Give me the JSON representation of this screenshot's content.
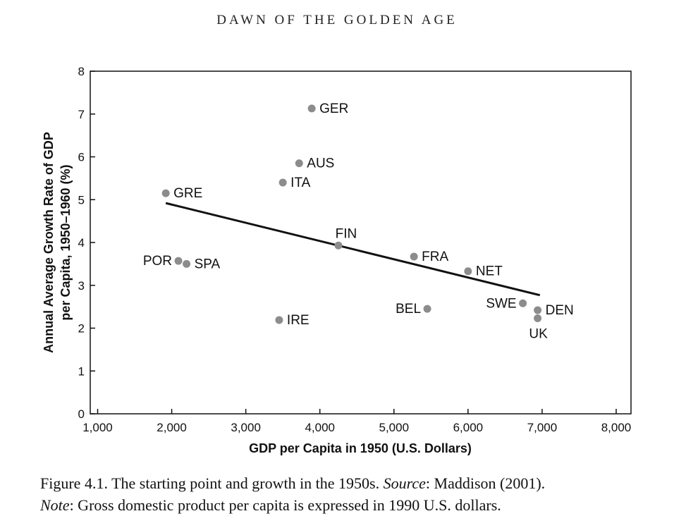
{
  "running_head": "DAWN OF THE GOLDEN AGE",
  "caption": {
    "figure_label": "Figure 4.1.",
    "text": "The starting point and growth in the 1950s.",
    "source_label": "Source",
    "source_text": ": Maddison (2001).",
    "note_label": "Note",
    "note_text": ": Gross domestic product per capita is expressed in 1990 U.S. dollars."
  },
  "chart_data": {
    "type": "scatter",
    "xlabel": "GDP per Capita in 1950 (U.S. Dollars)",
    "ylabel_lines": [
      "Annual Average Growth Rate of GDP",
      "per Capita, 1950–1960 (%)"
    ],
    "xlim": [
      900,
      8200
    ],
    "ylim": [
      0,
      8
    ],
    "x_ticks": [
      1000,
      2000,
      3000,
      4000,
      5000,
      6000,
      7000,
      8000
    ],
    "x_tick_labels": [
      "1,000",
      "2,000",
      "3,000",
      "4,000",
      "5,000",
      "6,000",
      "7,000",
      "8,000"
    ],
    "y_ticks": [
      0,
      1,
      2,
      3,
      4,
      5,
      6,
      7,
      8
    ],
    "y_tick_labels": [
      "0",
      "1",
      "2",
      "3",
      "4",
      "5",
      "6",
      "7",
      "8"
    ],
    "points": [
      {
        "label": "GER",
        "x": 3890,
        "y": 7.13,
        "label_pos": "right"
      },
      {
        "label": "AUS",
        "x": 3720,
        "y": 5.85,
        "label_pos": "right"
      },
      {
        "label": "ITA",
        "x": 3500,
        "y": 5.4,
        "label_pos": "right"
      },
      {
        "label": "GRE",
        "x": 1920,
        "y": 5.15,
        "label_pos": "right"
      },
      {
        "label": "FIN",
        "x": 4250,
        "y": 3.93,
        "label_pos": "above"
      },
      {
        "label": "FRA",
        "x": 5270,
        "y": 3.67,
        "label_pos": "right"
      },
      {
        "label": "NET",
        "x": 6000,
        "y": 3.33,
        "label_pos": "right"
      },
      {
        "label": "POR",
        "x": 2090,
        "y": 3.57,
        "label_pos": "left"
      },
      {
        "label": "SPA",
        "x": 2200,
        "y": 3.5,
        "label_pos": "right"
      },
      {
        "label": "BEL",
        "x": 5450,
        "y": 2.45,
        "label_pos": "left"
      },
      {
        "label": "SWE",
        "x": 6740,
        "y": 2.58,
        "label_pos": "left"
      },
      {
        "label": "DEN",
        "x": 6940,
        "y": 2.42,
        "label_pos": "right"
      },
      {
        "label": "UK",
        "x": 6940,
        "y": 2.23,
        "label_pos": "below"
      },
      {
        "label": "IRE",
        "x": 3450,
        "y": 2.19,
        "label_pos": "right"
      }
    ],
    "trend_line": {
      "x": [
        1920,
        6970
      ],
      "y": [
        4.92,
        2.77
      ]
    }
  }
}
